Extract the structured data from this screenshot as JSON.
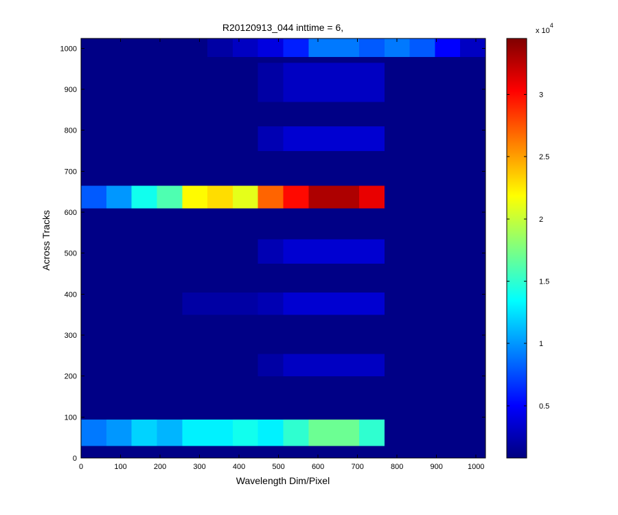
{
  "chart_data": {
    "type": "heatmap",
    "title": "R20120913_044 inttime = 6,",
    "x_label": "Wavelength Dim/Pixel",
    "y_label": "Across Tracks",
    "x_edges": [
      0,
      64,
      128,
      192,
      256,
      320,
      384,
      448,
      512,
      576,
      640,
      704,
      768,
      832,
      896,
      960,
      1024
    ],
    "y_edges": [
      0,
      30,
      95,
      200,
      255,
      350,
      405,
      475,
      535,
      610,
      665,
      750,
      810,
      870,
      965,
      980,
      1024
    ],
    "values": [
      [
        1000,
        1000,
        1000,
        1000,
        1000,
        1000,
        1000,
        1000,
        1000,
        1000,
        1000,
        1000,
        1000,
        1000,
        1000,
        1000
      ],
      [
        9000,
        10000,
        12000,
        11000,
        13000,
        13000,
        14000,
        13000,
        15000,
        17000,
        17000,
        15000,
        1000,
        1000,
        1000,
        1000
      ],
      [
        1000,
        1000,
        1000,
        1000,
        1000,
        1000,
        1000,
        1000,
        1000,
        1000,
        1000,
        1000,
        1000,
        1000,
        1000,
        1000
      ],
      [
        1000,
        1000,
        1000,
        1000,
        1000,
        1000,
        1000,
        2000,
        3000,
        3000,
        3000,
        3000,
        1000,
        1000,
        1000,
        1000
      ],
      [
        1000,
        1000,
        1000,
        1000,
        1000,
        1000,
        1000,
        1000,
        1000,
        1000,
        1000,
        1000,
        1000,
        1000,
        1000,
        1000
      ],
      [
        1000,
        1000,
        1000,
        1000,
        2000,
        2000,
        2000,
        2500,
        3500,
        3500,
        3500,
        3500,
        1000,
        1000,
        1000,
        1000
      ],
      [
        1000,
        1000,
        1000,
        1000,
        1000,
        1000,
        1000,
        1000,
        1000,
        1000,
        1000,
        1000,
        1000,
        1000,
        1000,
        1000
      ],
      [
        1000,
        1000,
        1000,
        1000,
        1000,
        1000,
        1000,
        2500,
        3500,
        3500,
        3500,
        3500,
        1000,
        1000,
        1000,
        1000
      ],
      [
        1000,
        1000,
        1000,
        1000,
        1000,
        1000,
        1000,
        1000,
        1000,
        1000,
        1000,
        1000,
        1000,
        1000,
        1000,
        1000
      ],
      [
        8000,
        10000,
        14000,
        16000,
        22000,
        23000,
        21000,
        27000,
        30000,
        33000,
        33000,
        31000,
        1000,
        1000,
        1000,
        1000
      ],
      [
        1000,
        1000,
        1000,
        1000,
        1000,
        1000,
        1000,
        1000,
        1000,
        1000,
        1000,
        1000,
        1000,
        1000,
        1000,
        1000
      ],
      [
        1000,
        1000,
        1000,
        1000,
        1000,
        1000,
        1000,
        2500,
        3500,
        3500,
        3500,
        3500,
        1000,
        1000,
        1000,
        1000
      ],
      [
        1000,
        1000,
        1000,
        1000,
        1000,
        1000,
        1000,
        1000,
        1000,
        1000,
        1000,
        1000,
        1000,
        1000,
        1000,
        1000
      ],
      [
        1000,
        1000,
        1000,
        1000,
        1000,
        1000,
        1000,
        2000,
        3000,
        3000,
        3000,
        3000,
        1000,
        1000,
        1000,
        1000
      ],
      [
        1000,
        1000,
        1000,
        1000,
        1000,
        1000,
        1000,
        1000,
        1000,
        1000,
        1000,
        1000,
        1000,
        1000,
        1000,
        1000
      ],
      [
        1000,
        1000,
        1000,
        1000,
        1000,
        2000,
        3000,
        4000,
        6000,
        9000,
        9000,
        8000,
        9000,
        8000,
        5000,
        3000
      ]
    ],
    "xlim": [
      0,
      1024
    ],
    "ylim": [
      0,
      1024
    ],
    "xticks": [
      0,
      100,
      200,
      300,
      400,
      500,
      600,
      700,
      800,
      900,
      1000
    ],
    "yticks": [
      0,
      100,
      200,
      300,
      400,
      500,
      600,
      700,
      800,
      900,
      1000
    ],
    "colormap": "jet",
    "clim": [
      800,
      34500
    ],
    "cticks": [
      {
        "value": 5000,
        "label": "0.5"
      },
      {
        "value": 10000,
        "label": "1"
      },
      {
        "value": 15000,
        "label": "1.5"
      },
      {
        "value": 20000,
        "label": "2"
      },
      {
        "value": 25000,
        "label": "2.5"
      },
      {
        "value": 30000,
        "label": "3"
      }
    ],
    "colorbar_scale_label": "x 10",
    "colorbar_scale_exponent": "4"
  }
}
